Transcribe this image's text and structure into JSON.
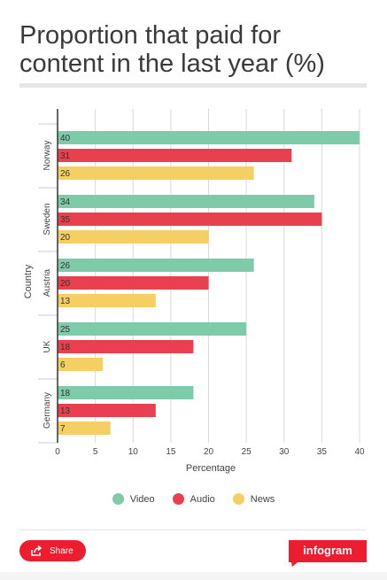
{
  "title": "Proportion that paid for content in the last year (%)",
  "legend": {
    "items": [
      {
        "label": "Video",
        "color": "#7ecbaa"
      },
      {
        "label": "Audio",
        "color": "#e8404f"
      },
      {
        "label": "News",
        "color": "#f6cf62"
      }
    ]
  },
  "footer": {
    "share_label": "Share",
    "brand": "infogram"
  },
  "chart_data": {
    "type": "bar",
    "orientation": "horizontal",
    "categories": [
      "Norway",
      "Sweden",
      "Austria",
      "UK",
      "Germany"
    ],
    "series": [
      {
        "name": "Video",
        "color": "#7ecbaa",
        "values": [
          40,
          34,
          26,
          25,
          18
        ]
      },
      {
        "name": "Audio",
        "color": "#e8404f",
        "values": [
          31,
          35,
          20,
          18,
          13
        ]
      },
      {
        "name": "News",
        "color": "#f6cf62",
        "values": [
          26,
          20,
          13,
          6,
          7
        ]
      }
    ],
    "xlabel": "Percentage",
    "ylabel": "Country",
    "xlim": [
      0,
      40
    ],
    "xticks": [
      0,
      5,
      10,
      15,
      20,
      25,
      30,
      35,
      40
    ],
    "grid": true,
    "legend_position": "bottom"
  }
}
